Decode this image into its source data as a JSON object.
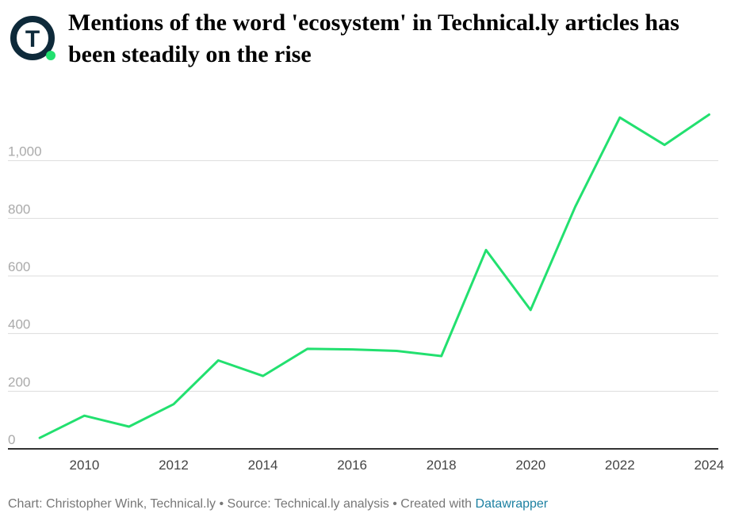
{
  "header": {
    "title": "Mentions of the word 'ecosystem' in Technical.ly articles has been steadily on the rise",
    "logo_letter": "T"
  },
  "colors": {
    "line": "#22e06f",
    "logo_ring": "#0e2a3a",
    "logo_dot": "#22e06f",
    "grid": "#dddddd",
    "axis": "#333333",
    "tick_label": "#aaaaaa",
    "x_tick_label": "#444444",
    "footer_text": "#777777",
    "footer_link": "#1d81a2"
  },
  "chart_data": {
    "type": "line",
    "title": "Mentions of the word 'ecosystem' in Technical.ly articles has been steadily on the rise",
    "xlabel": "",
    "ylabel": "",
    "x": [
      2009,
      2010,
      2011,
      2012,
      2013,
      2014,
      2015,
      2016,
      2017,
      2018,
      2019,
      2020,
      2021,
      2022,
      2023,
      2024
    ],
    "values": [
      38,
      115,
      77,
      155,
      307,
      253,
      347,
      345,
      340,
      322,
      690,
      482,
      840,
      1150,
      1055,
      1160
    ],
    "xlim": [
      2008.5,
      2024.1
    ],
    "ylim": [
      0,
      1200
    ],
    "y_ticks": [
      0,
      200,
      400,
      600,
      800,
      1000
    ],
    "y_tick_labels": [
      "0",
      "200",
      "400",
      "600",
      "800",
      "1,000"
    ],
    "x_ticks": [
      2010,
      2012,
      2014,
      2016,
      2018,
      2020,
      2022,
      2024
    ],
    "x_tick_labels": [
      "2010",
      "2012",
      "2014",
      "2016",
      "2018",
      "2020",
      "2022",
      "2024"
    ],
    "grid": true,
    "legend": "none"
  },
  "footer": {
    "prefix": "Chart: Christopher Wink, Technical.ly • Source: Technical.ly analysis • Created with ",
    "link": "Datawrapper"
  }
}
